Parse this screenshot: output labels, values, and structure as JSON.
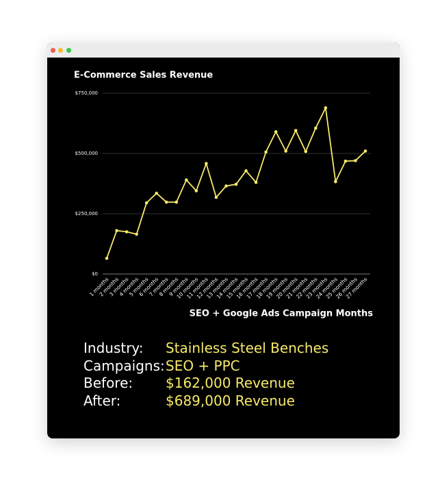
{
  "chart_data": {
    "type": "line",
    "title": "E-Commerce Sales Revenue",
    "x_label": "SEO + Google Ads Campaign Months",
    "categories": [
      "1 months",
      "2 months",
      "3 months",
      "4 months",
      "5 months",
      "6 months",
      "7 months",
      "8 months",
      "9 months",
      "10 months",
      "11 months",
      "12 months",
      "13 months",
      "14 months",
      "15 months",
      "16 months",
      "17 months",
      "18 months",
      "19 months",
      "20 months",
      "21 months",
      "22 months",
      "23 months",
      "24 months",
      "25 months",
      "26 months",
      "27 months"
    ],
    "series": [
      {
        "name": "Revenue",
        "color": "#f6e96a",
        "values": [
          65000,
          180000,
          175000,
          165000,
          295000,
          335000,
          298000,
          298000,
          390000,
          345000,
          458000,
          318000,
          365000,
          372000,
          428000,
          380000,
          506000,
          590000,
          510000,
          595000,
          508000,
          605000,
          689000,
          383000,
          468000,
          470000,
          510000
        ]
      }
    ],
    "ylim": [
      0,
      750000
    ],
    "yticks": [
      {
        "value": 0,
        "label": "$0"
      },
      {
        "value": 250000,
        "label": "$250,000"
      },
      {
        "value": 500000,
        "label": "$500,000"
      },
      {
        "value": 750000,
        "label": "$750,000"
      }
    ],
    "grid": true
  },
  "info": {
    "rows": [
      {
        "label": "Industry:",
        "value": "Stainless Steel Benches"
      },
      {
        "label": "Campaigns:",
        "value": "SEO + PPC"
      },
      {
        "label": "Before:",
        "value": "$162,000 Revenue"
      },
      {
        "label": "After:",
        "value": "$689,000 Revenue"
      }
    ]
  }
}
